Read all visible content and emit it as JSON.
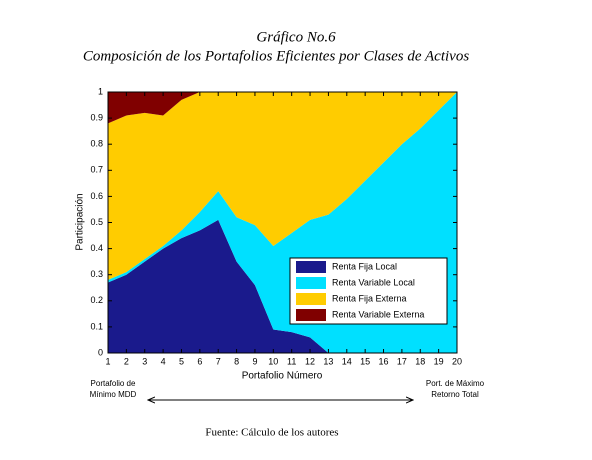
{
  "chart_data": {
    "type": "area",
    "stacked": true,
    "title": "Gráfico No.6",
    "subtitle": "Composición de los Portafolios Eficientes por Clases de Activos",
    "x_label": "Portafolio Número",
    "y_label": "Participación",
    "x": [
      1,
      2,
      3,
      4,
      5,
      6,
      7,
      8,
      9,
      10,
      11,
      12,
      13,
      14,
      15,
      16,
      17,
      18,
      19,
      20
    ],
    "xlim": [
      1,
      20
    ],
    "xticks": [
      1,
      2,
      3,
      4,
      5,
      6,
      7,
      8,
      9,
      10,
      11,
      12,
      13,
      14,
      15,
      16,
      17,
      18,
      19,
      20
    ],
    "ylim": [
      0,
      1
    ],
    "yticks": [
      0,
      0.1,
      0.2,
      0.3,
      0.4,
      0.5,
      0.6,
      0.7,
      0.8,
      0.9,
      1
    ],
    "legend_position": "lower right",
    "series": [
      {
        "name": "Renta Fija Local",
        "color": "#1a1a8c",
        "values": [
          0.27,
          0.3,
          0.35,
          0.4,
          0.44,
          0.47,
          0.51,
          0.35,
          0.26,
          0.09,
          0.08,
          0.06,
          0,
          0,
          0,
          0,
          0,
          0,
          0,
          0
        ]
      },
      {
        "name": "Renta Variable Local",
        "color": "#00e0ff",
        "values": [
          0.01,
          0.01,
          0.01,
          0.01,
          0.03,
          0.07,
          0.11,
          0.17,
          0.23,
          0.32,
          0.38,
          0.45,
          0.53,
          0.59,
          0.66,
          0.73,
          0.8,
          0.86,
          0.93,
          1.0
        ]
      },
      {
        "name": "Renta Fija Externa",
        "color": "#ffcc00",
        "values": [
          0.6,
          0.6,
          0.56,
          0.5,
          0.5,
          0.46,
          0.38,
          0.48,
          0.51,
          0.59,
          0.54,
          0.49,
          0.47,
          0.41,
          0.34,
          0.27,
          0.2,
          0.14,
          0.07,
          0
        ]
      },
      {
        "name": "Renta Variable Externa",
        "color": "#800000",
        "values": [
          0.12,
          0.09,
          0.08,
          0.09,
          0.03,
          0,
          0,
          0,
          0,
          0,
          0,
          0,
          0,
          0,
          0,
          0,
          0,
          0,
          0,
          0
        ]
      }
    ],
    "annotations": [
      {
        "lines": [
          "Portafolio de",
          "Mínimo MDD"
        ]
      },
      {
        "lines": [
          "Port. de Máximo",
          "Retorno Total"
        ]
      }
    ],
    "source": "Fuente: Cálculo de los autores"
  }
}
